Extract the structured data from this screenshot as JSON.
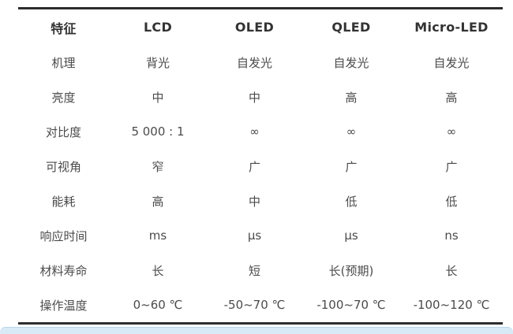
{
  "table": {
    "columns": [
      "特征",
      "LCD",
      "OLED",
      "QLED",
      "Micro-LED"
    ],
    "rows": [
      {
        "label": "机理",
        "values": [
          "背光",
          "自发光",
          "自发光",
          "自发光"
        ]
      },
      {
        "label": "亮度",
        "values": [
          "中",
          "中",
          "高",
          "高"
        ]
      },
      {
        "label": "对比度",
        "values": [
          "5 000 : 1",
          "∞",
          "∞",
          "∞"
        ]
      },
      {
        "label": "可视角",
        "values": [
          "窄",
          "广",
          "广",
          "广"
        ]
      },
      {
        "label": "能耗",
        "values": [
          "高",
          "中",
          "低",
          "低"
        ]
      },
      {
        "label": "响应时间",
        "values": [
          "ms",
          "μs",
          "μs",
          "ns"
        ]
      },
      {
        "label": "材料寿命",
        "values": [
          "长",
          "短",
          "长(预期)",
          "长"
        ]
      },
      {
        "label": "操作温度",
        "values": [
          "0~60 ℃",
          "-50~70 ℃",
          "-100~70 ℃",
          "-100~120 ℃"
        ]
      }
    ]
  },
  "colors": {
    "table_border": "#2d2d2d",
    "header_text": "#333333",
    "body_text": "#4b4b4b",
    "bottom_bar_fill": "#d9eaf7",
    "bottom_bar_border": "#b9d6ec",
    "page_background": "#ffffff"
  }
}
